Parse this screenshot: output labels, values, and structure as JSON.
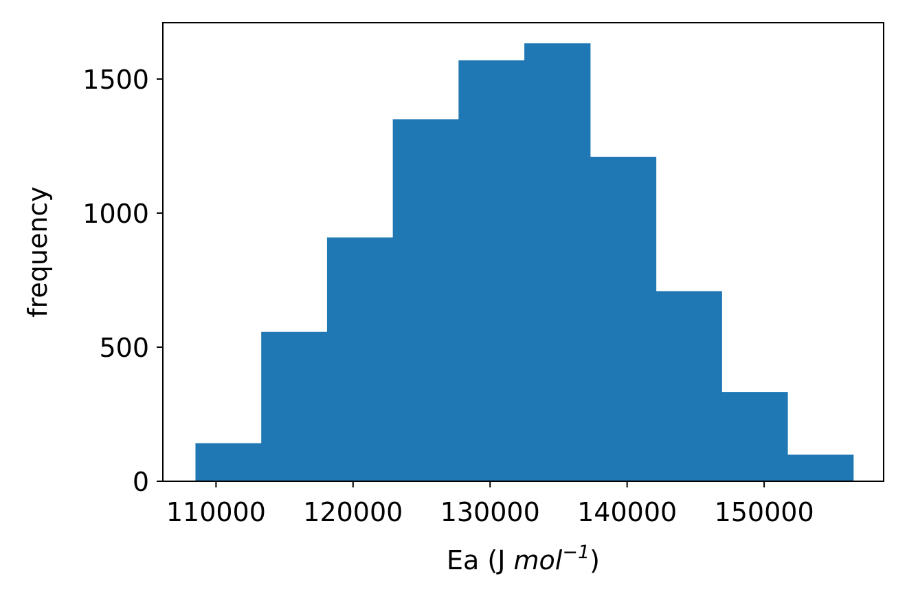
{
  "chart_data": {
    "type": "bar",
    "title": "",
    "xlabel": "Ea (J mol⁻¹)",
    "xlabel_parts": {
      "pre": "Ea (J ",
      "math": "mol",
      "sup": "−1",
      "post": ")"
    },
    "ylabel": "frequency",
    "xlim": [
      106120,
      158720
    ],
    "ylim": [
      0,
      1710
    ],
    "bin_edges": [
      108500,
      113300,
      118100,
      122900,
      127700,
      132500,
      137300,
      142100,
      146900,
      151700,
      156500
    ],
    "values": [
      142,
      557,
      909,
      1350,
      1570,
      1633,
      1210,
      709,
      333,
      99
    ],
    "x_ticks": [
      110000,
      120000,
      130000,
      140000,
      150000
    ],
    "y_ticks": [
      0,
      500,
      1000,
      1500
    ],
    "bar_color": "#1f77b4",
    "grid": false,
    "legend": "none"
  }
}
